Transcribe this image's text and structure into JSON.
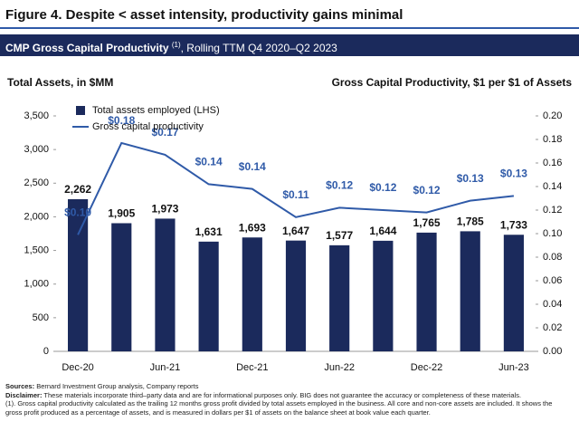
{
  "header": {
    "title": "Figure 4. Despite < asset intensity, productivity gains minimal"
  },
  "banner": {
    "title": "CMP Gross Capital Productivity",
    "superscript": "(1)",
    "subtitle": ", Rolling TTM Q4 2020–Q2 2023"
  },
  "chart_data": {
    "type": "bar",
    "y_axis_title": "Total Assets, in $MM",
    "y2_axis_title": "Gross Capital Productivity, $1 per $1 of Assets",
    "categories": [
      "Dec-20",
      null,
      "Jun-21",
      null,
      "Dec-21",
      null,
      "Jun-22",
      null,
      "Dec-22",
      null,
      "Jun-23"
    ],
    "series": [
      {
        "name": "Total assets employed (LHS)",
        "type": "bar",
        "color": "#1b2a5c",
        "values": [
          2262,
          1905,
          1973,
          1631,
          1693,
          1647,
          1577,
          1644,
          1765,
          1785,
          1733
        ],
        "value_labels": [
          "2,262",
          "1,905",
          "1,973",
          "1,631",
          "1,693",
          "1,647",
          "1,577",
          "1,644",
          "1,765",
          "1,785",
          "1,733"
        ]
      },
      {
        "name": "Gross capital productivity",
        "type": "line",
        "color": "#2f5aa8",
        "axis": "y2",
        "values": [
          0.099,
          0.177,
          0.167,
          0.142,
          0.138,
          0.114,
          0.122,
          0.12,
          0.118,
          0.128,
          0.132
        ],
        "value_labels": [
          "$0.10",
          "$0.18",
          "$0.17",
          "$0.14",
          "$0.14",
          "$0.11",
          "$0.12",
          "$0.12",
          "$0.12",
          "$0.13",
          "$0.13"
        ]
      }
    ],
    "ylim": [
      0,
      3500
    ],
    "yticks": [
      0,
      500,
      {
        "value": 1000,
        "label": "1,000"
      },
      {
        "value": 1500,
        "label": "1,500"
      },
      {
        "value": 2000,
        "label": "2,000"
      },
      {
        "value": 2500,
        "label": "2,500"
      },
      {
        "value": 3000,
        "label": "3,000"
      },
      {
        "value": 3500,
        "label": "3,500"
      }
    ],
    "y2lim": [
      0,
      0.2
    ],
    "y2ticks": [
      {
        "value": 0,
        "label": "0.00"
      },
      {
        "value": 0.02,
        "label": "0.02"
      },
      {
        "value": 0.04,
        "label": "0.04"
      },
      {
        "value": 0.06,
        "label": "0.06"
      },
      {
        "value": 0.08,
        "label": "0.08"
      },
      {
        "value": 0.1,
        "label": "0.10"
      },
      {
        "value": 0.12,
        "label": "0.12"
      },
      {
        "value": 0.14,
        "label": "0.14"
      },
      {
        "value": 0.16,
        "label": "0.16"
      },
      {
        "value": 0.18,
        "label": "0.18"
      },
      {
        "value": 0.2,
        "label": "0.20"
      }
    ],
    "legend": "top-left"
  },
  "footnotes": {
    "sources_label": "Sources:",
    "sources": "Bernard Investment Group analysis, Company reports",
    "disclaimer_label": "Disclaimer:",
    "disclaimer": "These materials incorporate third–party data and are for informational purposes only. BIG does not guarantee the accuracy or completeness of these materials.",
    "note": "(1). Gross capital productivity calculated as the trailing 12 months gross profit divided by total assets employed in the business. All core and non-core assets are included. It shows the gross profit produced as a percentage of assets, and is measured in dollars per $1 of assets on the balance sheet at book value each quarter."
  }
}
